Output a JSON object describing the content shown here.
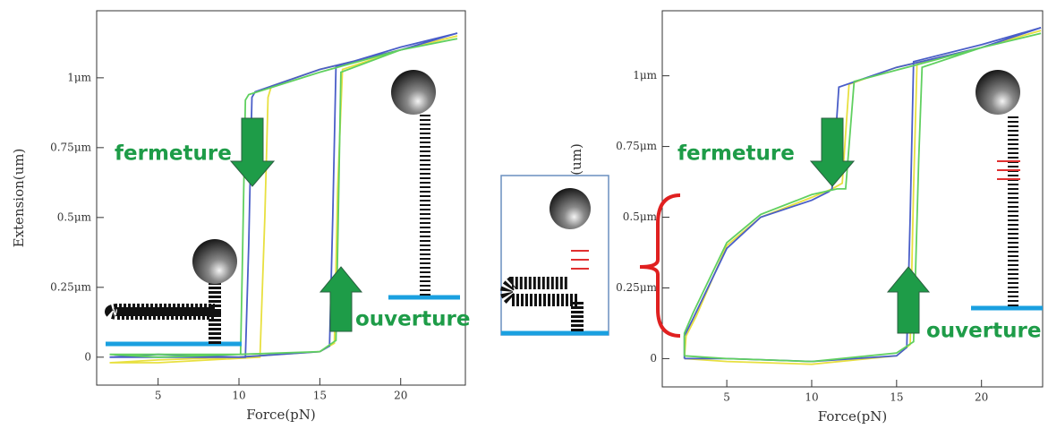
{
  "chart_data": [
    {
      "type": "line",
      "xlabel": "Force(pN)",
      "ylabel": "Extension(um)",
      "xlim": [
        1.2,
        24
      ],
      "ylim": [
        -0.1,
        1.24
      ],
      "xticks": [
        5,
        10,
        15,
        20
      ],
      "yticks": [
        0,
        {
          "value": 0.25,
          "label": "0.25μm"
        },
        {
          "value": 0.5,
          "label": "0.5μm"
        },
        {
          "value": 0.75,
          "label": "0.75μm"
        },
        {
          "value": 1,
          "label": "1μm"
        }
      ],
      "series": [
        {
          "color": "#e8e040",
          "x": [
            2,
            5,
            10,
            15,
            15.9,
            16.1,
            16.4,
            20,
            23.5,
            20,
            15,
            12,
            11.8,
            11.6,
            11.3,
            5,
            2
          ],
          "values": [
            -0.02,
            -0.01,
            0,
            0.02,
            0.05,
            0.6,
            1.03,
            1.1,
            1.15,
            1.1,
            1.03,
            0.97,
            0.93,
            0.5,
            0,
            -0.02,
            -0.02
          ]
        },
        {
          "color": "#4a5ec8",
          "x": [
            2,
            5,
            10,
            15,
            15.6,
            15.8,
            16,
            20,
            23.5,
            20,
            15,
            11,
            10.8,
            10.6,
            10.4,
            5,
            2
          ],
          "values": [
            0,
            0.01,
            0,
            0.02,
            0.04,
            0.5,
            1.04,
            1.11,
            1.16,
            1.1,
            1.03,
            0.95,
            0.93,
            0.4,
            0,
            0,
            0
          ]
        },
        {
          "color": "#60d060",
          "x": [
            2,
            5,
            10,
            15,
            16,
            16.2,
            16.3,
            20,
            23.5,
            20,
            15,
            10.6,
            10.4,
            10.2,
            10.1,
            5,
            2
          ],
          "values": [
            0.01,
            0,
            0.01,
            0.02,
            0.06,
            0.7,
            1.02,
            1.1,
            1.14,
            1.1,
            1.02,
            0.94,
            0.92,
            0.3,
            0.01,
            0.01,
            0.01
          ]
        }
      ],
      "annotations": [
        "fermeture",
        "ouverture"
      ]
    },
    {
      "type": "line",
      "xlabel": "Force(pN)",
      "ylabel": "(um)",
      "xlim": [
        1.2,
        23.6
      ],
      "ylim": [
        -0.1,
        1.23
      ],
      "xticks": [
        5,
        10,
        15,
        20
      ],
      "yticks": [
        0,
        {
          "value": 0.25,
          "label": "0.25μm"
        },
        {
          "value": 0.5,
          "label": "0.5μm"
        },
        {
          "value": 0.75,
          "label": "0.75μm"
        },
        {
          "value": 1,
          "label": "1μm"
        }
      ],
      "series": [
        {
          "color": "#e8e040",
          "x": [
            2.5,
            5,
            10,
            15,
            15.8,
            16,
            16.2,
            20,
            23.5,
            20,
            15,
            12.2,
            11.8,
            11.2,
            10,
            7,
            5,
            3.2,
            2.6,
            2.5
          ],
          "values": [
            0,
            -0.01,
            -0.02,
            0.01,
            0.05,
            0.6,
            1.04,
            1.1,
            1.16,
            1.1,
            1.03,
            0.97,
            0.62,
            0.6,
            0.57,
            0.5,
            0.4,
            0.15,
            0.08,
            0
          ]
        },
        {
          "color": "#4a5ec8",
          "x": [
            2.5,
            5,
            10,
            15,
            15.6,
            15.8,
            16,
            20,
            23.5,
            20,
            15,
            11.6,
            11.2,
            11,
            10,
            7,
            5,
            3,
            2.5,
            2.5
          ],
          "values": [
            0,
            0,
            -0.01,
            0.01,
            0.04,
            0.5,
            1.05,
            1.11,
            1.17,
            1.1,
            1.03,
            0.96,
            0.6,
            0.59,
            0.56,
            0.5,
            0.39,
            0.14,
            0.08,
            0
          ]
        },
        {
          "color": "#60d060",
          "x": [
            2.5,
            5,
            10,
            15,
            16,
            16.3,
            16.5,
            20,
            23.5,
            20,
            15,
            12.5,
            12,
            11.5,
            10,
            7,
            5,
            3,
            2.5,
            2.5
          ],
          "values": [
            0.01,
            0,
            -0.01,
            0.02,
            0.06,
            0.7,
            1.03,
            1.1,
            1.15,
            1.1,
            1.02,
            0.98,
            0.6,
            0.6,
            0.58,
            0.51,
            0.41,
            0.16,
            0.09,
            0.01
          ]
        }
      ],
      "annotations": [
        "fermeture",
        "ouverture"
      ]
    }
  ]
}
